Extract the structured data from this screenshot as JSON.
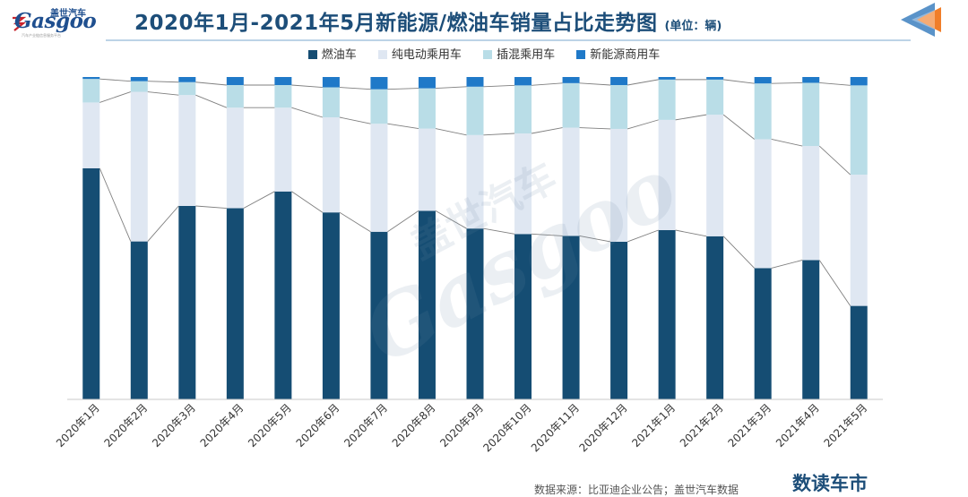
{
  "header": {
    "logo_text": "Gasgoo",
    "logo_cn": "盖世汽车",
    "logo_tagline": "汽车产业链信息服务平台",
    "title": "2020年1月-2021年5月新能源/燃油车销量占比走势图",
    "unit": "(单位：辆)"
  },
  "watermark": {
    "cn": "盖世汽车",
    "en": "Gasgoo"
  },
  "footer": {
    "source": "数据来源：比亚迪企业公告；盖世汽车数据",
    "brand": "数读车市"
  },
  "colors": {
    "fuel": "#154d73",
    "bev": "#dfe7f2",
    "phev": "#b9dde7",
    "commercial": "#1f79c8",
    "title": "#1d4e79",
    "line": "#7f7f7f"
  },
  "chart_data": {
    "type": "bar",
    "stacked": true,
    "percent": true,
    "title": "2020年1月-2021年5月新能源/燃油车销量占比走势图",
    "categories": [
      "2020年1月",
      "2020年2月",
      "2020年3月",
      "2020年4月",
      "2020年5月",
      "2020年6月",
      "2020年7月",
      "2020年8月",
      "2020年9月",
      "2020年10月",
      "2020年11月",
      "2020年12月",
      "2021年1月",
      "2021年2月",
      "2021年3月",
      "2021年4月",
      "2021年5月"
    ],
    "series": [
      {
        "name": "燃油车",
        "color": "#154d73",
        "values": [
          71.7,
          49.0,
          60.0,
          59.3,
          64.5,
          58.0,
          52.0,
          58.5,
          53.0,
          51.3,
          50.7,
          48.9,
          52.5,
          50.6,
          40.7,
          43.2,
          29.0
        ]
      },
      {
        "name": "纯电动乘用车",
        "color": "#dfe7f2",
        "values": [
          20.4,
          46.4,
          34.4,
          31.2,
          26.0,
          29.5,
          33.5,
          25.5,
          29.0,
          31.2,
          33.6,
          35.0,
          34.2,
          37.7,
          40.0,
          35.4,
          40.7
        ]
      },
      {
        "name": "插混乘用车",
        "color": "#b9dde7",
        "values": [
          7.3,
          3.3,
          4.0,
          7.0,
          7.0,
          9.3,
          10.7,
          12.5,
          15.0,
          14.9,
          13.8,
          13.6,
          12.5,
          10.9,
          17.3,
          19.6,
          27.7
        ]
      },
      {
        "name": "新能源商用车",
        "color": "#1f79c8",
        "values": [
          0.6,
          1.3,
          1.6,
          2.5,
          2.5,
          3.2,
          3.8,
          3.5,
          3.0,
          2.6,
          1.9,
          2.5,
          0.8,
          0.8,
          2.0,
          1.8,
          2.6
        ]
      }
    ],
    "ylim": [
      0,
      100
    ],
    "connector_lines": true,
    "legend_position": "top",
    "grid": false
  }
}
